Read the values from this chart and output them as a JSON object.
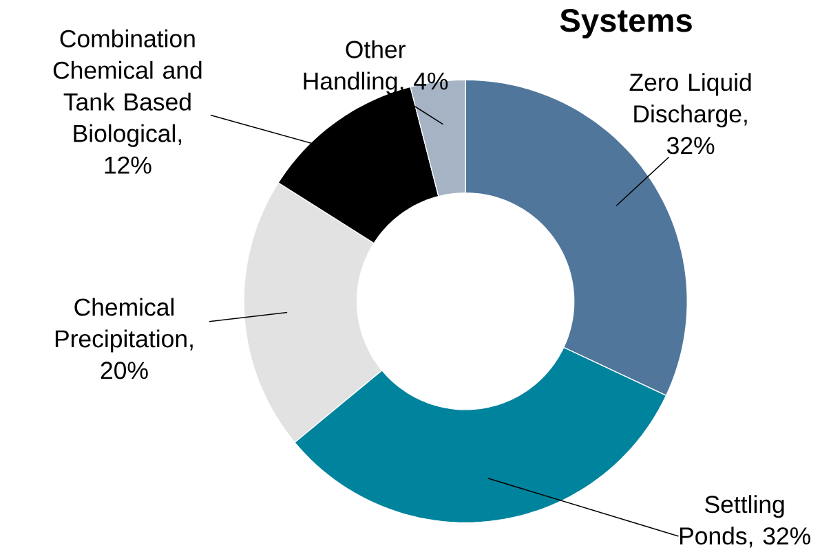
{
  "chart_data": {
    "type": "donut",
    "title": "Systems",
    "categories": [
      "Zero Liquid Discharge, 32%",
      "Settling Ponds, 32%",
      "Chemical Precipitation, 20%",
      "Combination Chemical and Tank Based Biological, 12%",
      "Other Handling, 4%"
    ],
    "values": [
      32,
      32,
      20,
      12,
      4
    ],
    "colors": [
      "#50769b",
      "#00839d",
      "#e2e2e2",
      "#000000",
      "#a5b3c5"
    ]
  }
}
